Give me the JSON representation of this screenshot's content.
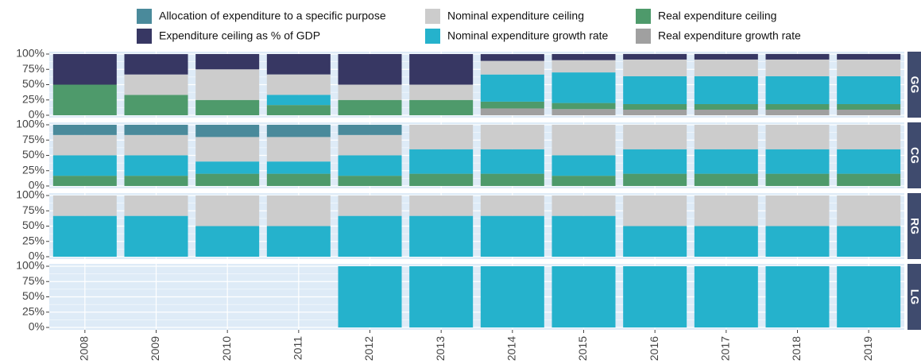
{
  "chart_data": [
    {
      "type": "bar",
      "stacked": true,
      "panel": "GG",
      "grid": true,
      "categories": [
        "2008",
        "2009",
        "2010",
        "2011",
        "2012",
        "2013",
        "2014",
        "2015",
        "2016",
        "2017",
        "2018",
        "2019"
      ],
      "ylim": [
        0,
        100
      ],
      "yticks": [
        {
          "value": 0,
          "label": "0%"
        },
        {
          "value": 25,
          "label": "25%"
        },
        {
          "value": 50,
          "label": "50%"
        },
        {
          "value": 75,
          "label": "75%"
        },
        {
          "value": 100,
          "label": "100%"
        }
      ],
      "series": [
        {
          "name": "Real expenditure growth rate",
          "color": "#a0a0a0",
          "values": [
            0,
            0,
            0,
            0,
            0,
            0,
            11.1,
            10,
            9.1,
            9.1,
            9.1,
            9.1
          ]
        },
        {
          "name": "Real expenditure ceiling",
          "color": "#4e9a6b",
          "values": [
            50,
            33.3,
            25,
            16.7,
            25,
            25,
            11.1,
            10,
            9.1,
            9.1,
            9.1,
            9.1
          ]
        },
        {
          "name": "Nominal expenditure growth rate",
          "color": "#25b2cc",
          "values": [
            0,
            0,
            0,
            16.7,
            0,
            0,
            44.4,
            50,
            45.5,
            45.5,
            45.5,
            45.5
          ]
        },
        {
          "name": "Nominal expenditure ceiling",
          "color": "#cccccc",
          "values": [
            0,
            33.3,
            50,
            33.3,
            25,
            25,
            22.2,
            20,
            27.3,
            27.3,
            27.3,
            27.3
          ]
        },
        {
          "name": "Expenditure ceiling as % of GDP",
          "color": "#373763",
          "values": [
            50,
            33.3,
            25,
            33.3,
            50,
            50,
            11.1,
            10,
            9.1,
            9.1,
            9.1,
            9.1
          ]
        },
        {
          "name": "Allocation of expenditure to a specific purpose",
          "color": "#4a8a9b",
          "values": [
            0,
            0,
            0,
            0,
            0,
            0,
            0,
            0,
            0,
            0,
            0,
            0
          ]
        }
      ]
    },
    {
      "type": "bar",
      "stacked": true,
      "panel": "CG",
      "grid": true,
      "categories": [
        "2008",
        "2009",
        "2010",
        "2011",
        "2012",
        "2013",
        "2014",
        "2015",
        "2016",
        "2017",
        "2018",
        "2019"
      ],
      "ylim": [
        0,
        100
      ],
      "yticks": [
        {
          "value": 0,
          "label": "0%"
        },
        {
          "value": 25,
          "label": "25%"
        },
        {
          "value": 50,
          "label": "50%"
        },
        {
          "value": 75,
          "label": "75%"
        },
        {
          "value": 100,
          "label": "100%"
        }
      ],
      "series": [
        {
          "name": "Real expenditure growth rate",
          "color": "#a0a0a0",
          "values": [
            0,
            0,
            0,
            0,
            0,
            0,
            0,
            0,
            0,
            0,
            0,
            0
          ]
        },
        {
          "name": "Real expenditure ceiling",
          "color": "#4e9a6b",
          "values": [
            16.7,
            16.7,
            20,
            20,
            16.7,
            20,
            20,
            16.7,
            20,
            20,
            20,
            20
          ]
        },
        {
          "name": "Nominal expenditure growth rate",
          "color": "#25b2cc",
          "values": [
            33.3,
            33.3,
            20,
            20,
            33.3,
            40,
            40,
            33.3,
            40,
            40,
            40,
            40
          ]
        },
        {
          "name": "Nominal expenditure ceiling",
          "color": "#cccccc",
          "values": [
            33.3,
            33.3,
            40,
            40,
            33.3,
            40,
            40,
            50,
            40,
            40,
            40,
            40
          ]
        },
        {
          "name": "Expenditure ceiling as % of GDP",
          "color": "#373763",
          "values": [
            0,
            0,
            0,
            0,
            0,
            0,
            0,
            0,
            0,
            0,
            0,
            0
          ]
        },
        {
          "name": "Allocation of expenditure to a specific purpose",
          "color": "#4a8a9b",
          "values": [
            16.7,
            16.7,
            20,
            20,
            16.7,
            0,
            0,
            0,
            0,
            0,
            0,
            0
          ]
        }
      ]
    },
    {
      "type": "bar",
      "stacked": true,
      "panel": "RG",
      "grid": true,
      "categories": [
        "2008",
        "2009",
        "2010",
        "2011",
        "2012",
        "2013",
        "2014",
        "2015",
        "2016",
        "2017",
        "2018",
        "2019"
      ],
      "ylim": [
        0,
        100
      ],
      "yticks": [
        {
          "value": 0,
          "label": "0%"
        },
        {
          "value": 25,
          "label": "25%"
        },
        {
          "value": 50,
          "label": "50%"
        },
        {
          "value": 75,
          "label": "75%"
        },
        {
          "value": 100,
          "label": "100%"
        }
      ],
      "series": [
        {
          "name": "Real expenditure growth rate",
          "color": "#a0a0a0",
          "values": [
            0,
            0,
            0,
            0,
            0,
            0,
            0,
            0,
            0,
            0,
            0,
            0
          ]
        },
        {
          "name": "Real expenditure ceiling",
          "color": "#4e9a6b",
          "values": [
            0,
            0,
            0,
            0,
            0,
            0,
            0,
            0,
            0,
            0,
            0,
            0
          ]
        },
        {
          "name": "Nominal expenditure growth rate",
          "color": "#25b2cc",
          "values": [
            66.7,
            66.7,
            50,
            50,
            66.7,
            66.7,
            66.7,
            66.7,
            50,
            50,
            50,
            50
          ]
        },
        {
          "name": "Nominal expenditure ceiling",
          "color": "#cccccc",
          "values": [
            33.3,
            33.3,
            50,
            50,
            33.3,
            33.3,
            33.3,
            33.3,
            50,
            50,
            50,
            50
          ]
        },
        {
          "name": "Expenditure ceiling as % of GDP",
          "color": "#373763",
          "values": [
            0,
            0,
            0,
            0,
            0,
            0,
            0,
            0,
            0,
            0,
            0,
            0
          ]
        },
        {
          "name": "Allocation of expenditure to a specific purpose",
          "color": "#4a8a9b",
          "values": [
            0,
            0,
            0,
            0,
            0,
            0,
            0,
            0,
            0,
            0,
            0,
            0
          ]
        }
      ]
    },
    {
      "type": "bar",
      "stacked": true,
      "panel": "LG",
      "grid": true,
      "categories": [
        "2008",
        "2009",
        "2010",
        "2011",
        "2012",
        "2013",
        "2014",
        "2015",
        "2016",
        "2017",
        "2018",
        "2019"
      ],
      "ylim": [
        0,
        100
      ],
      "yticks": [
        {
          "value": 0,
          "label": "0%"
        },
        {
          "value": 25,
          "label": "25%"
        },
        {
          "value": 50,
          "label": "50%"
        },
        {
          "value": 75,
          "label": "75%"
        },
        {
          "value": 100,
          "label": "100%"
        }
      ],
      "series": [
        {
          "name": "Real expenditure growth rate",
          "color": "#a0a0a0",
          "values": [
            null,
            null,
            null,
            null,
            0,
            0,
            0,
            0,
            0,
            0,
            0,
            0
          ]
        },
        {
          "name": "Real expenditure ceiling",
          "color": "#4e9a6b",
          "values": [
            null,
            null,
            null,
            null,
            0,
            0,
            0,
            0,
            0,
            0,
            0,
            0
          ]
        },
        {
          "name": "Nominal expenditure growth rate",
          "color": "#25b2cc",
          "values": [
            null,
            null,
            null,
            null,
            100,
            100,
            100,
            100,
            100,
            100,
            100,
            100
          ]
        },
        {
          "name": "Nominal expenditure ceiling",
          "color": "#cccccc",
          "values": [
            null,
            null,
            null,
            null,
            0,
            0,
            0,
            0,
            0,
            0,
            0,
            0
          ]
        },
        {
          "name": "Expenditure ceiling as % of GDP",
          "color": "#373763",
          "values": [
            null,
            null,
            null,
            null,
            0,
            0,
            0,
            0,
            0,
            0,
            0,
            0
          ]
        },
        {
          "name": "Allocation of expenditure to a specific purpose",
          "color": "#4a8a9b",
          "values": [
            null,
            null,
            null,
            null,
            0,
            0,
            0,
            0,
            0,
            0,
            0,
            0
          ]
        }
      ]
    }
  ]
}
